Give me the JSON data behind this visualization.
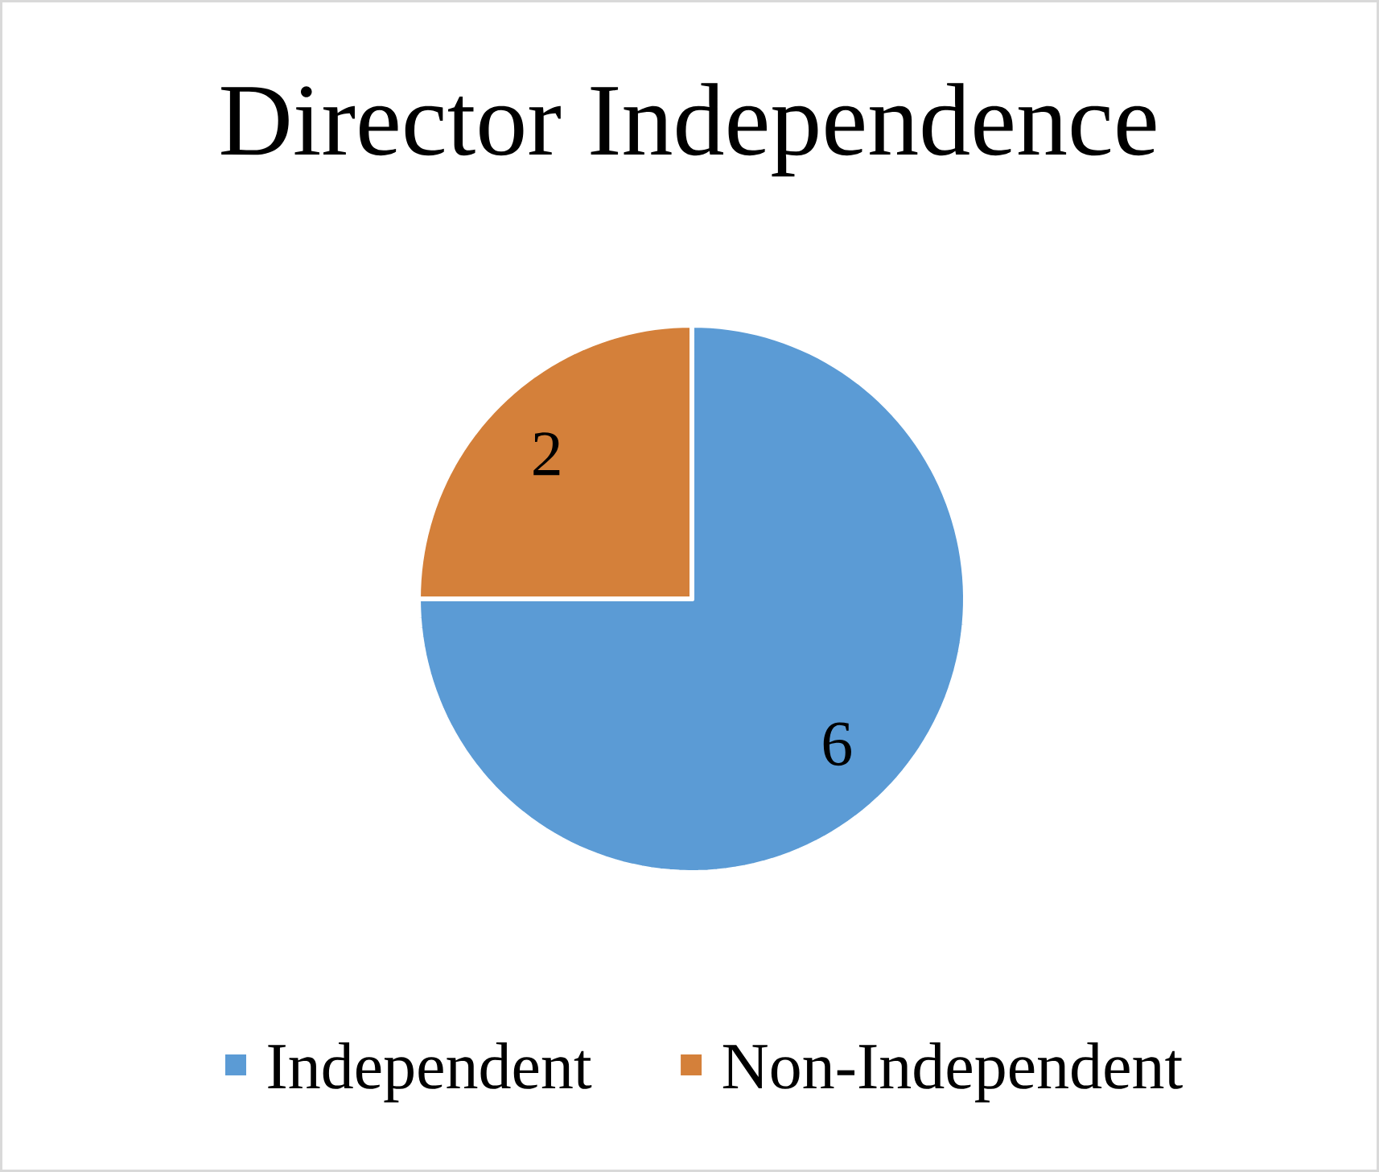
{
  "chart_data": {
    "type": "pie",
    "title": "Director Independence",
    "categories": [
      "Independent",
      "Non-Independent"
    ],
    "values": [
      6,
      2
    ],
    "colors": [
      "#5b9bd5",
      "#d4803a"
    ],
    "data_labels": true,
    "legend": "bottom"
  }
}
